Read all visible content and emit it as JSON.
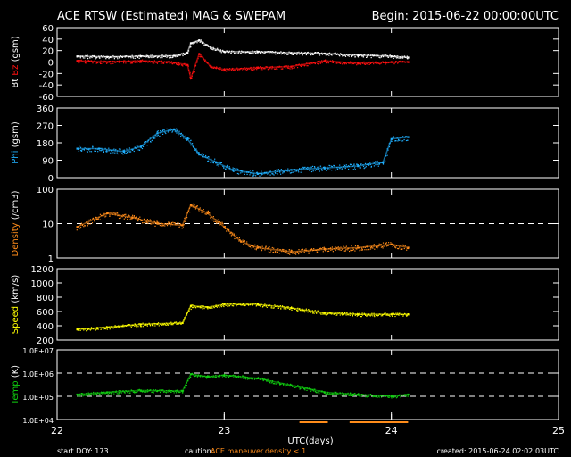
{
  "header": {
    "title": "ACE RTSW (Estimated) MAG & SWEPAM",
    "begin": "Begin: 2015-06-22 00:00:00UTC"
  },
  "footer": {
    "start_doy": "start DOY: 173",
    "caution_label": "caution:",
    "maneuver_label": "ACE maneuver",
    "density_note": "density < 1",
    "created": "created: 2015-06-24 02:02:03UTC"
  },
  "colors": {
    "background": "#000000",
    "axes": "#ffffff",
    "bt": "#ffffff",
    "bz": "#ff1010",
    "phi": "#20b0ff",
    "density": "#ff8c1a",
    "speed": "#ffff00",
    "temp": "#10d010",
    "maneuver": "#ff8c1a"
  },
  "chart_data": [
    {
      "type": "scatter",
      "panel": "mag",
      "ylabel_parts": [
        "Bt",
        "Bz",
        "(gsm)"
      ],
      "yticks": [
        "60",
        "40",
        "20",
        "0",
        "-20",
        "-40",
        "-60"
      ],
      "ylim": [
        -60,
        60
      ],
      "log": false,
      "reference_lines": [
        0
      ],
      "xlim": [
        22,
        25
      ],
      "series": [
        {
          "name": "Bt",
          "x": [
            22.12,
            22.3,
            22.5,
            22.7,
            22.78,
            22.8,
            22.85,
            22.92,
            23.0,
            23.2,
            23.4,
            23.6,
            23.8,
            24.0,
            24.1
          ],
          "y": [
            10,
            9,
            10,
            11,
            16,
            33,
            38,
            25,
            18,
            18,
            16,
            15,
            12,
            10,
            8
          ]
        },
        {
          "name": "Bz",
          "x": [
            22.12,
            22.3,
            22.5,
            22.7,
            22.78,
            22.8,
            22.85,
            22.92,
            23.0,
            23.2,
            23.4,
            23.6,
            23.8,
            24.0,
            24.1
          ],
          "y": [
            2,
            0,
            2,
            -1,
            -5,
            -28,
            14,
            -8,
            -13,
            -10,
            -8,
            2,
            -2,
            0,
            0
          ]
        }
      ]
    },
    {
      "type": "scatter",
      "panel": "phi",
      "ylabel_parts": [
        "Phi",
        "(gsm)"
      ],
      "yticks": [
        "360",
        "270",
        "180",
        "90",
        "0"
      ],
      "ylim": [
        0,
        360
      ],
      "log": false,
      "reference_lines": [],
      "xlim": [
        22,
        25
      ],
      "series": [
        {
          "name": "Phi",
          "x": [
            22.12,
            22.25,
            22.4,
            22.5,
            22.6,
            22.7,
            22.78,
            22.85,
            22.95,
            23.05,
            23.2,
            23.4,
            23.6,
            23.8,
            23.95,
            24.0,
            24.1
          ],
          "y": [
            150,
            150,
            135,
            160,
            230,
            250,
            200,
            120,
            80,
            40,
            20,
            40,
            50,
            60,
            80,
            200,
            210
          ]
        }
      ]
    },
    {
      "type": "scatter",
      "panel": "density",
      "ylabel_parts": [
        "Density",
        "(/cm3)"
      ],
      "yticks": [
        "100",
        "10",
        "1"
      ],
      "ylim": [
        1,
        100
      ],
      "log": true,
      "reference_lines": [
        10
      ],
      "xlim": [
        22,
        25
      ],
      "series": [
        {
          "name": "Density",
          "x": [
            22.12,
            22.3,
            22.45,
            22.6,
            22.75,
            22.8,
            22.9,
            23.0,
            23.1,
            23.2,
            23.4,
            23.6,
            23.8,
            24.0,
            24.1
          ],
          "y": [
            8,
            20,
            15,
            10,
            9,
            35,
            20,
            8,
            3,
            2,
            1.5,
            1.8,
            2,
            2.5,
            2
          ]
        }
      ]
    },
    {
      "type": "scatter",
      "panel": "speed",
      "ylabel_parts": [
        "Speed",
        "(km/s)"
      ],
      "yticks": [
        "1200",
        "1000",
        "800",
        "600",
        "400",
        "200"
      ],
      "ylim": [
        200,
        1200
      ],
      "log": false,
      "reference_lines": [],
      "xlim": [
        22,
        25
      ],
      "series": [
        {
          "name": "Speed",
          "x": [
            22.12,
            22.3,
            22.5,
            22.75,
            22.8,
            22.9,
            23.0,
            23.2,
            23.4,
            23.6,
            23.8,
            24.0,
            24.1
          ],
          "y": [
            350,
            380,
            420,
            440,
            680,
            660,
            700,
            700,
            650,
            580,
            560,
            560,
            560
          ]
        }
      ]
    },
    {
      "type": "scatter",
      "panel": "temp",
      "ylabel_parts": [
        "Temp",
        "(K)"
      ],
      "yticks": [
        "1.0E+07",
        "1.0E+06",
        "1.0E+05",
        "1.0E+04"
      ],
      "ylim": [
        10000,
        10000000
      ],
      "log": true,
      "reference_lines": [
        1000000,
        100000
      ],
      "xlim": [
        22,
        25
      ],
      "series": [
        {
          "name": "Temp",
          "x": [
            22.12,
            22.3,
            22.5,
            22.75,
            22.8,
            22.9,
            23.0,
            23.2,
            23.4,
            23.6,
            23.8,
            24.0,
            24.1
          ],
          "y": [
            120000,
            150000,
            180000,
            170000,
            900000,
            700000,
            800000,
            600000,
            300000,
            150000,
            120000,
            100000,
            120000
          ]
        }
      ]
    }
  ],
  "x_axis": {
    "label": "UTC(days)",
    "ticks": [
      "22",
      "23",
      "24",
      "25"
    ],
    "range": [
      22,
      25
    ]
  },
  "maneuver_segments": [
    [
      23.45,
      23.62
    ],
    [
      23.75,
      24.1
    ]
  ]
}
